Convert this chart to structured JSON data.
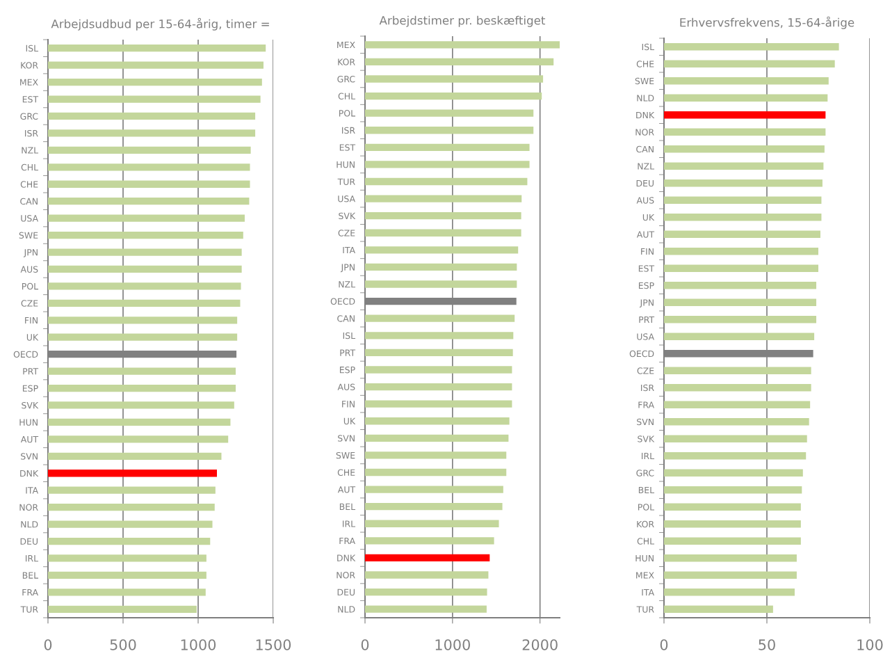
{
  "chart_data": [
    {
      "type": "bar",
      "orientation": "horizontal",
      "title": "Arbejdsudbud per 15-64-årig, timer =",
      "categories": [
        "ISL",
        "KOR",
        "MEX",
        "EST",
        "GRC",
        "ISR",
        "NZL",
        "CHL",
        "CHE",
        "CAN",
        "USA",
        "SWE",
        "JPN",
        "AUS",
        "POL",
        "CZE",
        "FIN",
        "UK",
        "OECD",
        "PRT",
        "ESP",
        "SVK",
        "HUN",
        "AUT",
        "SVN",
        "DNK",
        "ITA",
        "NOR",
        "NLD",
        "DEU",
        "IRL",
        "BEL",
        "FRA",
        "TUR"
      ],
      "values": [
        1450,
        1435,
        1425,
        1415,
        1380,
        1380,
        1350,
        1345,
        1345,
        1340,
        1310,
        1300,
        1290,
        1290,
        1285,
        1280,
        1260,
        1260,
        1255,
        1250,
        1250,
        1240,
        1215,
        1200,
        1155,
        1125,
        1115,
        1110,
        1095,
        1080,
        1055,
        1055,
        1050,
        990
      ],
      "colors": [
        "#c3d69b",
        "#c3d69b",
        "#c3d69b",
        "#c3d69b",
        "#c3d69b",
        "#c3d69b",
        "#c3d69b",
        "#c3d69b",
        "#c3d69b",
        "#c3d69b",
        "#c3d69b",
        "#c3d69b",
        "#c3d69b",
        "#c3d69b",
        "#c3d69b",
        "#c3d69b",
        "#c3d69b",
        "#c3d69b",
        "#808080",
        "#c3d69b",
        "#c3d69b",
        "#c3d69b",
        "#c3d69b",
        "#c3d69b",
        "#c3d69b",
        "#ff0000",
        "#c3d69b",
        "#c3d69b",
        "#c3d69b",
        "#c3d69b",
        "#c3d69b",
        "#c3d69b",
        "#c3d69b",
        "#c3d69b"
      ],
      "xlim": [
        0,
        1500
      ],
      "xticks": [
        0,
        500,
        1000,
        1500
      ],
      "grid": "x"
    },
    {
      "type": "bar",
      "orientation": "horizontal",
      "title": "Arbejdstimer pr. beskæftiget",
      "categories": [
        "MEX",
        "KOR",
        "GRC",
        "CHL",
        "POL",
        "ISR",
        "EST",
        "HUN",
        "TUR",
        "USA",
        "SVK",
        "CZE",
        "ITA",
        "JPN",
        "NZL",
        "OECD",
        "CAN",
        "ISL",
        "PRT",
        "ESP",
        "AUS",
        "FIN",
        "UK",
        "SVN",
        "SWE",
        "CHE",
        "AUT",
        "BEL",
        "IRL",
        "FRA",
        "DNK",
        "NOR",
        "DEU",
        "NLD"
      ],
      "values": [
        2225,
        2155,
        2035,
        2020,
        1925,
        1925,
        1880,
        1880,
        1855,
        1790,
        1785,
        1785,
        1750,
        1735,
        1735,
        1730,
        1710,
        1695,
        1690,
        1680,
        1680,
        1680,
        1650,
        1640,
        1615,
        1615,
        1580,
        1570,
        1530,
        1475,
        1425,
        1410,
        1395,
        1390
      ],
      "colors": [
        "#c3d69b",
        "#c3d69b",
        "#c3d69b",
        "#c3d69b",
        "#c3d69b",
        "#c3d69b",
        "#c3d69b",
        "#c3d69b",
        "#c3d69b",
        "#c3d69b",
        "#c3d69b",
        "#c3d69b",
        "#c3d69b",
        "#c3d69b",
        "#c3d69b",
        "#808080",
        "#c3d69b",
        "#c3d69b",
        "#c3d69b",
        "#c3d69b",
        "#c3d69b",
        "#c3d69b",
        "#c3d69b",
        "#c3d69b",
        "#c3d69b",
        "#c3d69b",
        "#c3d69b",
        "#c3d69b",
        "#c3d69b",
        "#c3d69b",
        "#ff0000",
        "#c3d69b",
        "#c3d69b",
        "#c3d69b"
      ],
      "xlim": [
        0,
        2225
      ],
      "xticks": [
        0,
        1000,
        2000
      ],
      "grid": "x"
    },
    {
      "type": "bar",
      "orientation": "horizontal",
      "title": "Erhvervsfrekvens, 15-64-årige",
      "categories": [
        "ISL",
        "CHE",
        "SWE",
        "NLD",
        "DNK",
        "NOR",
        "CAN",
        "NZL",
        "DEU",
        "AUS",
        "UK",
        "AUT",
        "FIN",
        "EST",
        "ESP",
        "JPN",
        "PRT",
        "USA",
        "OECD",
        "CZE",
        "ISR",
        "FRA",
        "SVN",
        "SVK",
        "IRL",
        "GRC",
        "BEL",
        "POL",
        "KOR",
        "CHL",
        "HUN",
        "MEX",
        "ITA",
        "TUR"
      ],
      "values": [
        85,
        83,
        80,
        79.5,
        78.5,
        78.5,
        78,
        77.5,
        77,
        76.5,
        76.5,
        76,
        75,
        75,
        74,
        74,
        74,
        73,
        72.5,
        71.5,
        71.5,
        71,
        70.5,
        69.5,
        69,
        67.5,
        67,
        66.5,
        66.5,
        66.5,
        64.5,
        64.5,
        63.5,
        53
      ],
      "colors": [
        "#c3d69b",
        "#c3d69b",
        "#c3d69b",
        "#c3d69b",
        "#ff0000",
        "#c3d69b",
        "#c3d69b",
        "#c3d69b",
        "#c3d69b",
        "#c3d69b",
        "#c3d69b",
        "#c3d69b",
        "#c3d69b",
        "#c3d69b",
        "#c3d69b",
        "#c3d69b",
        "#c3d69b",
        "#c3d69b",
        "#808080",
        "#c3d69b",
        "#c3d69b",
        "#c3d69b",
        "#c3d69b",
        "#c3d69b",
        "#c3d69b",
        "#c3d69b",
        "#c3d69b",
        "#c3d69b",
        "#c3d69b",
        "#c3d69b",
        "#c3d69b",
        "#c3d69b",
        "#c3d69b",
        "#c3d69b"
      ],
      "xlim": [
        0,
        100
      ],
      "xticks": [
        0,
        50,
        100
      ],
      "grid": "x"
    }
  ]
}
